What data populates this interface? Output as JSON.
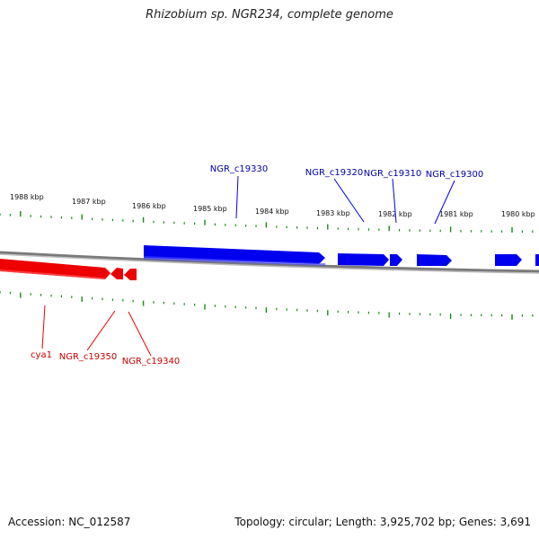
{
  "title": "Rhizobium sp. NGR234, complete genome",
  "footer": {
    "accession": "Accession: NC_012587",
    "summary": "Topology: circular; Length: 3,925,702 bp; Genes: 3,691"
  },
  "colors": {
    "forward": "#0000ee",
    "reverse": "#ee0000",
    "ticks": "#1a8a1a",
    "backbone": "#808080"
  },
  "ruler": {
    "labels": [
      "1988 kbp",
      "1987 kbp",
      "1986 kbp",
      "1985 kbp",
      "1984 kbp",
      "1983 kbp",
      "1982 kbp",
      "1981 kbp",
      "1980 kbp"
    ]
  },
  "forward_genes": [
    "NGR_c19330",
    "NGR_c19320",
    "NGR_c19310",
    "NGR_c19300"
  ],
  "reverse_genes": [
    "cya1",
    "NGR_c19350",
    "NGR_c19340"
  ]
}
